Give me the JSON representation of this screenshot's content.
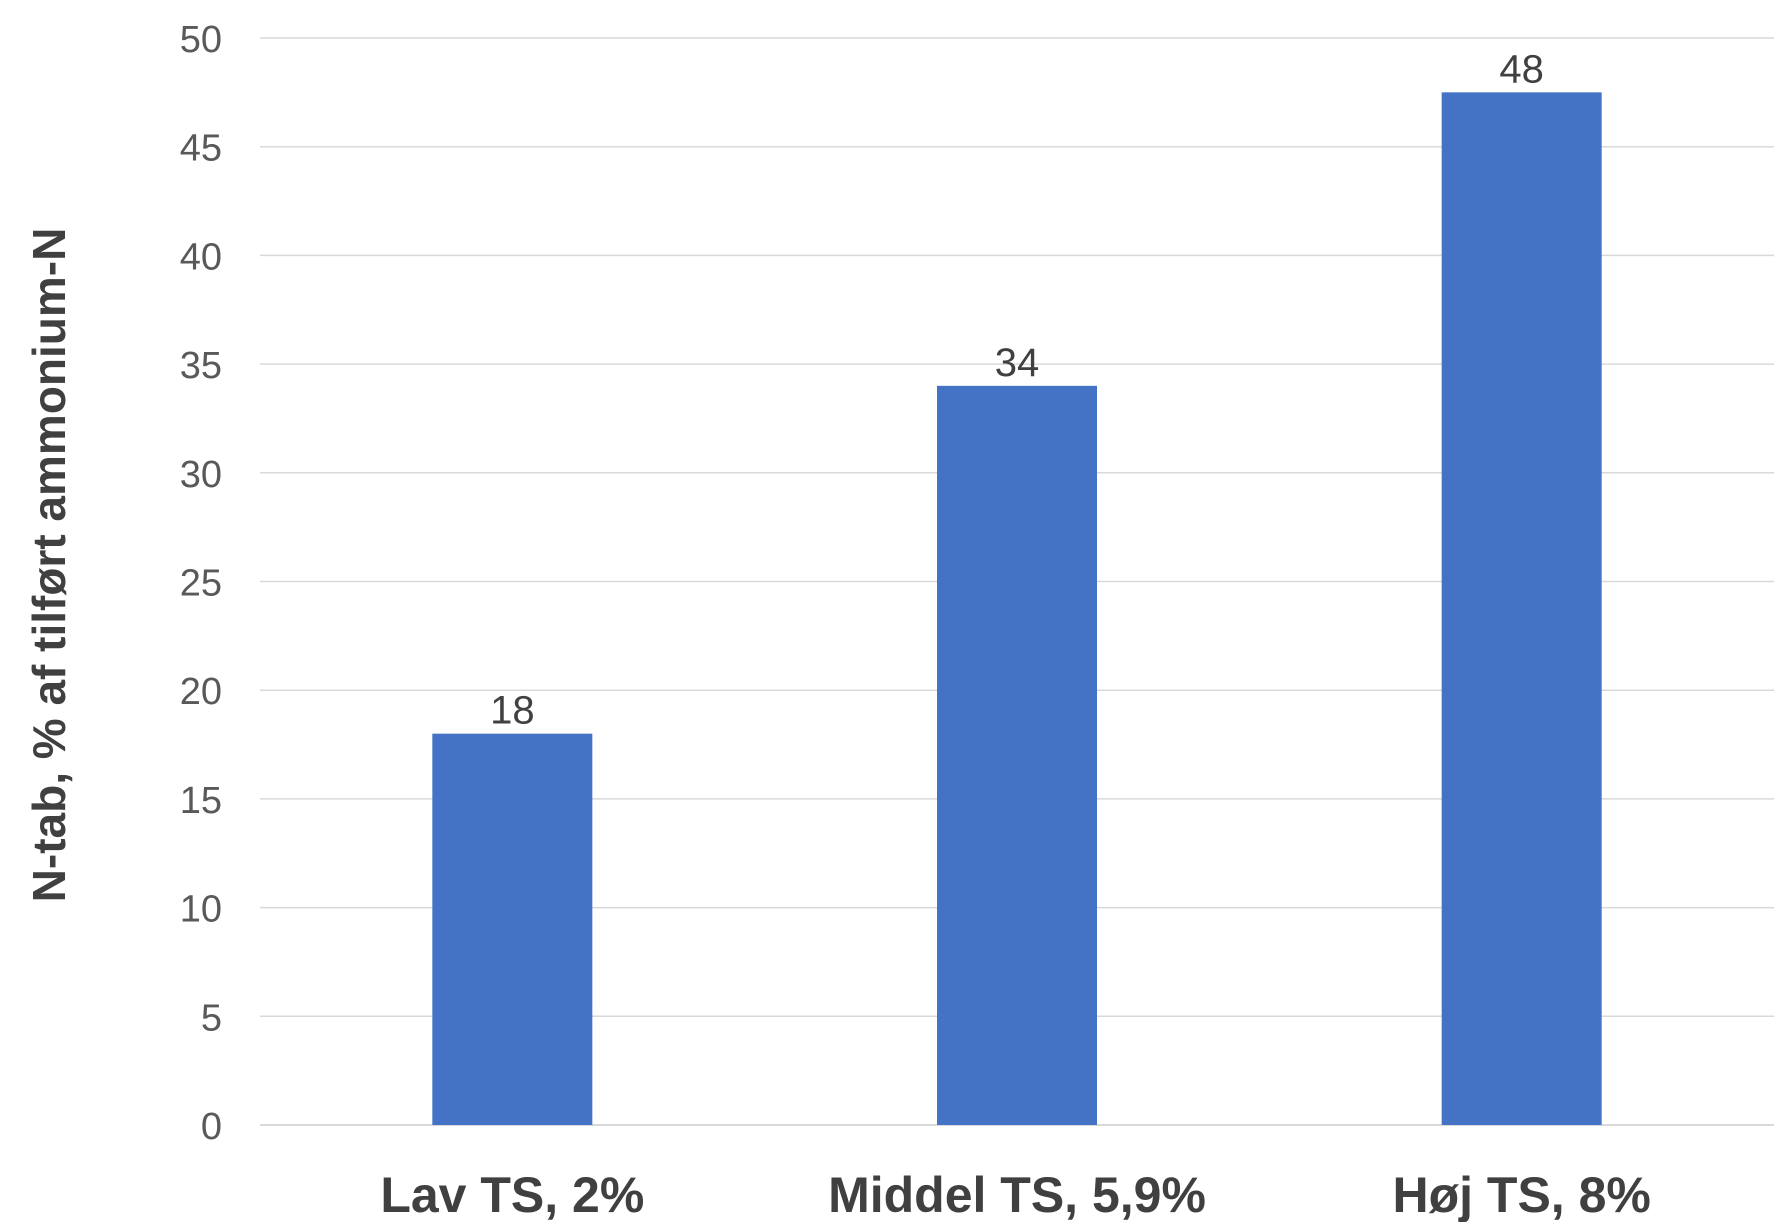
{
  "chart_data": {
    "type": "bar",
    "categories": [
      "Lav TS, 2%",
      "Middel TS, 5,9%",
      "Høj TS, 8%"
    ],
    "values": [
      18,
      34,
      47.5
    ],
    "data_labels": [
      "18",
      "34",
      "48"
    ],
    "title": "",
    "xlabel": "",
    "ylabel": "N-tab, % af tilført ammonium-N",
    "ylim": [
      0,
      50
    ],
    "yticks": [
      0,
      5,
      10,
      15,
      20,
      25,
      30,
      35,
      40,
      45,
      50
    ],
    "grid": true,
    "bar_color": "#4472C4"
  }
}
